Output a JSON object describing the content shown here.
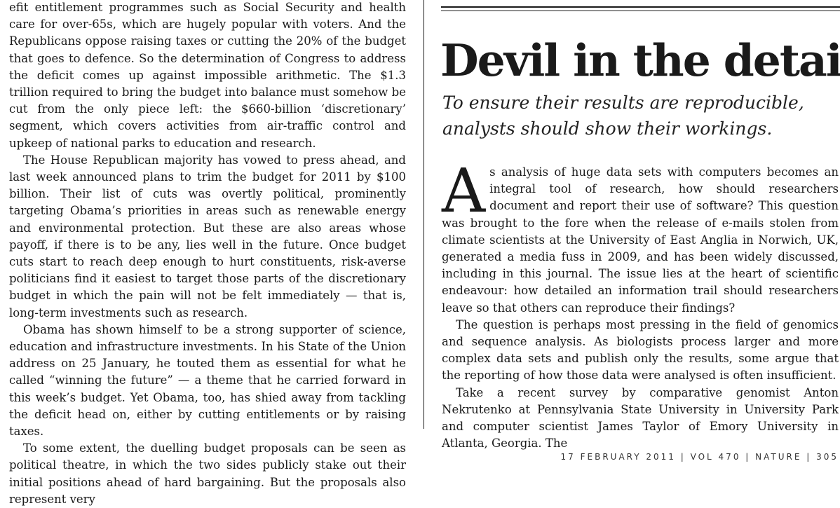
{
  "left_column": {
    "paragraphs": [
      "efit entitlement programmes such as Social Security and health care for over-65s, which are hugely popular with voters. And the Republicans oppose raising taxes or cutting the 20% of the budget that goes to defence. So the determination of Congress to address the deficit comes up against impossible arithmetic. The $1.3 trillion required to bring the budget into balance must somehow be cut from the only piece left: the $660-billion ‘discretionary’ segment, which covers activities from air-traffic control and upkeep of national parks to education and research.",
      "The House Republican majority has vowed to press ahead, and last week announced plans to trim the budget for 2011 by $100 billion. Their list of cuts was overtly political, prominently targeting Obama’s priorities in areas such as renewable energy and environmental protection. But these are also areas whose payoff, if there is to be any, lies well in the future. Once budget cuts start to reach deep enough to hurt constituents, risk-averse politicians find it easiest to target those parts of the discretionary budget in which the pain will not be felt immediately — that is, long-term investments such as research.",
      "Obama has shown himself to be a strong supporter of science, education and infrastructure investments. In his State of the Union address on 25 January, he touted them as essential for what he called “winning the future” — a theme that he carried forward in this week’s budget. Yet Obama, too, has shied away from tackling the deficit head on, either by cutting entitlements or by raising taxes.",
      "To some extent, the duelling budget proposals can be seen as political theatre, in which the two sides publicly stake out their initial positions ahead of hard bargaining. But the proposals also represent very"
    ]
  },
  "article": {
    "headline": "Devil in the details",
    "standfirst": "To ensure their results are reproducible, analysts should show their workings.",
    "dropcap": "A",
    "first_paragraph_rest": "s analysis of huge data sets with computers becomes an integral tool of research, how should researchers document and report their use of software? This question was brought to the fore when the release of e-mails stolen from climate scientists at the University of East Anglia in Norwich, UK, generated a media fuss in 2009, and has been widely discussed, including in this journal. The issue lies at the heart of scientific endeavour: how detailed an information trail should researchers leave so that others can reproduce their findings?",
    "paragraphs": [
      "The question is perhaps most pressing in the field of genomics and sequence analysis. As biologists process larger and more complex data sets and publish only the results, some argue that the reporting of how those data were analysed is often insufficient.",
      "Take a recent survey by comparative genomist Anton Nekrutenko at Pennsylvania State University in University Park and computer scientist James Taylor of Emory University in Atlanta, Georgia. The"
    ]
  },
  "footer": {
    "text": "17 FEBRUARY 2011 | VOL 470 | NATURE | 305"
  }
}
